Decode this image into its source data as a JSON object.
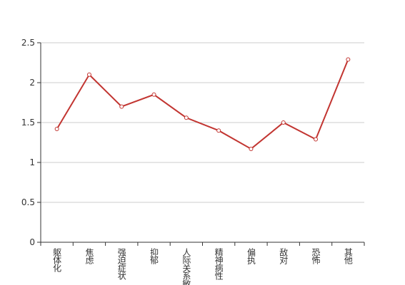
{
  "chart_data": {
    "type": "line",
    "categories": [
      "躯体化",
      "焦虑",
      "强迫症状",
      "抑郁",
      "人际关系敏感",
      "精神病性",
      "偏执",
      "敌对",
      "恐怖",
      "其他"
    ],
    "series": [
      {
        "color": "#c23531",
        "values": [
          1.42,
          2.1,
          1.7,
          1.85,
          1.56,
          1.4,
          1.17,
          1.5,
          1.29,
          2.29
        ]
      }
    ],
    "ylim": [
      0,
      2.5
    ],
    "yticks": [
      0,
      0.5,
      1,
      1.5,
      2,
      2.5
    ],
    "grid": true
  }
}
